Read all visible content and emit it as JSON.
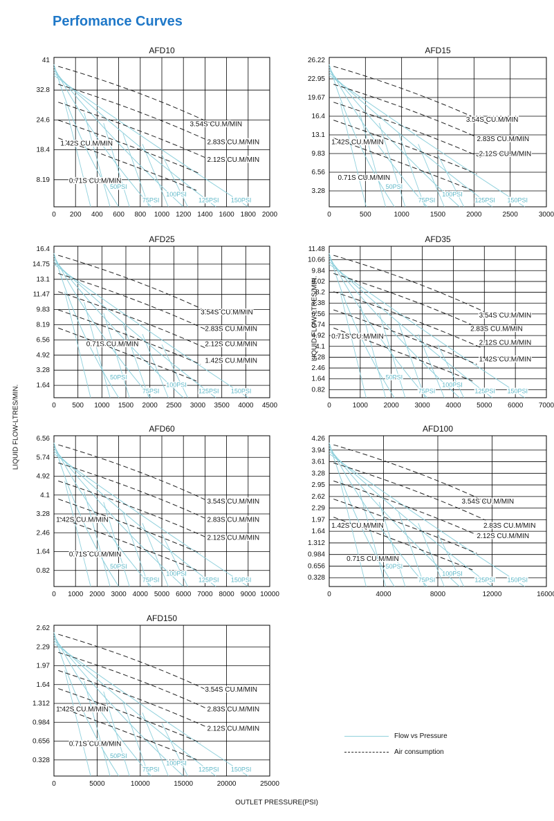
{
  "page": {
    "title": "Perfomance Curves",
    "y_axis_label": "LIQUID FLOW-LTRES/MIN.",
    "x_axis_label": "OUTLET PRESSURE(PSI)"
  },
  "legend": [
    {
      "label": "Flow vs Pressure",
      "style": "solid",
      "color": "#8fd0dc"
    },
    {
      "label": "Air consumption",
      "style": "dashed",
      "color": "#222222"
    }
  ],
  "colors": {
    "grid": "#000000",
    "flow_line": "#8fd0dc",
    "air_line": "#222222",
    "title": "#1f78c8"
  },
  "chart_data": [
    {
      "type": "line",
      "title": "AFD10",
      "yticks": [
        "41",
        "32.8",
        "24.6",
        "18.4",
        "8.19"
      ],
      "xticks": [
        "0",
        "200",
        "400",
        "600",
        "800",
        "1000",
        "1200",
        "1400",
        "1600",
        "1800",
        "2000"
      ],
      "xlim": [
        0,
        2000
      ],
      "ylim": [
        0,
        41
      ],
      "psi_labels": [
        "50PSI",
        "75PSI",
        "100PSI",
        "125PSI",
        "150PSI"
      ],
      "air_labels": [
        "3.54S CU.M/MIN",
        "2.83S CU.M/MIN",
        "2.12S CU.M/MIN",
        "1.42S CU.M/MIN",
        "0.71S CU.M/MIN"
      ]
    },
    {
      "type": "line",
      "title": "AFD15",
      "yticks": [
        "26.22",
        "22.95",
        "19.67",
        "16.4",
        "13.1",
        "9.83",
        "6.56",
        "3.28"
      ],
      "xticks": [
        "0",
        "500",
        "1000",
        "1500",
        "2000",
        "2500",
        "3000"
      ],
      "xlim": [
        0,
        3000
      ],
      "ylim": [
        0,
        26.22
      ],
      "psi_labels": [
        "50PSI",
        "75PSI",
        "100PSI",
        "125PSI",
        "150PSI"
      ],
      "air_labels": [
        "3.54S CU.M/MIN",
        "2.83S CU.M/MIN",
        "2.12S CU.M/MIN",
        "1.42S CU.M/MIN",
        "0.71S CU.M/MIN"
      ]
    },
    {
      "type": "line",
      "title": "AFD25",
      "yticks": [
        "16.4",
        "14.75",
        "13.1",
        "11.47",
        "9.83",
        "8.19",
        "6.56",
        "4.92",
        "3.28",
        "1.64"
      ],
      "xticks": [
        "0",
        "500",
        "1000",
        "1500",
        "2000",
        "2500",
        "3000",
        "3500",
        "4000",
        "4500"
      ],
      "xlim": [
        0,
        4500
      ],
      "ylim": [
        0,
        16.4
      ],
      "psi_labels": [
        "50PSI",
        "75PSI",
        "100PSI",
        "125PSI",
        "150PSI"
      ],
      "air_labels": [
        "3.54S CU.M/MIN",
        "2.83S CU.M/MIN",
        "2.12S CU.M/MIN",
        "1.42S CU.M/MIN",
        "0.71S CU.M/MIN"
      ]
    },
    {
      "type": "line",
      "title": "AFD35",
      "yticks": [
        "11.48",
        "10.66",
        "9.84",
        "9.02",
        "8.2",
        "7.38",
        "6.56",
        "5.74",
        "4.92",
        "4.1",
        "3.28",
        "2.46",
        "1.64",
        "0.82"
      ],
      "xticks": [
        "0",
        "1000",
        "2000",
        "3000",
        "4000",
        "5000",
        "6000",
        "7000"
      ],
      "xlim": [
        0,
        7000
      ],
      "ylim": [
        0,
        11.48
      ],
      "psi_labels": [
        "50PSI",
        "75PSI",
        "100PSI",
        "125PSI",
        "150PSI"
      ],
      "air_labels": [
        "3.54S CU.M/MIN",
        "2.83S CU.M/MIN",
        "2.12S CU.M/MIN",
        "1.42S CU.M/MIN",
        "0.71S CU.M/MIN"
      ]
    },
    {
      "type": "line",
      "title": "AFD60",
      "yticks": [
        "6.56",
        "5.74",
        "4.92",
        "4.1",
        "3.28",
        "2.46",
        "1.64",
        "0.82"
      ],
      "xticks": [
        "0",
        "1000",
        "2000",
        "3000",
        "4000",
        "5000",
        "6000",
        "7000",
        "8000",
        "9000",
        "10000"
      ],
      "xlim": [
        0,
        10000
      ],
      "ylim": [
        0,
        6.56
      ],
      "psi_labels": [
        "50PSI",
        "75PSI",
        "100PSI",
        "125PSI",
        "150PSI"
      ],
      "air_labels": [
        "3.54S CU.M/MIN",
        "2.83S CU.M/MIN",
        "2.12S CU.M/MIN",
        "1.42S CU.M/MIN",
        "0.71S CU.M/MIN"
      ]
    },
    {
      "type": "line",
      "title": "AFD100",
      "yticks": [
        "4.26",
        "3.94",
        "3.61",
        "3.28",
        "2.95",
        "2.62",
        "2.29",
        "1.97",
        "1.64",
        "1.312",
        "0.984",
        "0.656",
        "0.328"
      ],
      "xticks": [
        "0",
        "4000",
        "8000",
        "12000",
        "16000"
      ],
      "xlim": [
        0,
        18000
      ],
      "ylim": [
        0,
        4.26
      ],
      "psi_labels": [
        "50PSI",
        "75PSI",
        "100PSI",
        "125PSI",
        "150PSI"
      ],
      "air_labels": [
        "3.54S CU.M/MIN",
        "2.83S CU.M/MIN",
        "2.12S CU.M/MIN",
        "1.42S CU.M/MIN",
        "0.71S CU.M/MIN"
      ]
    },
    {
      "type": "line",
      "title": "AFD150",
      "yticks": [
        "2.62",
        "2.29",
        "1.97",
        "1.64",
        "1.312",
        "0.984",
        "0.656",
        "0.328"
      ],
      "xticks": [
        "0",
        "5000",
        "10000",
        "15000",
        "20000",
        "25000"
      ],
      "xlim": [
        0,
        25000
      ],
      "ylim": [
        0,
        2.62
      ],
      "psi_labels": [
        "50PSI",
        "75PSI",
        "100PSI",
        "125PSI",
        "150PSI"
      ],
      "air_labels": [
        "3.54S CU.M/MIN",
        "2.83S CU.M/MIN",
        "2.12S CU.M/MIN",
        "1.42S CU.M/MIN",
        "0.71S CU.M/MIN"
      ]
    }
  ]
}
